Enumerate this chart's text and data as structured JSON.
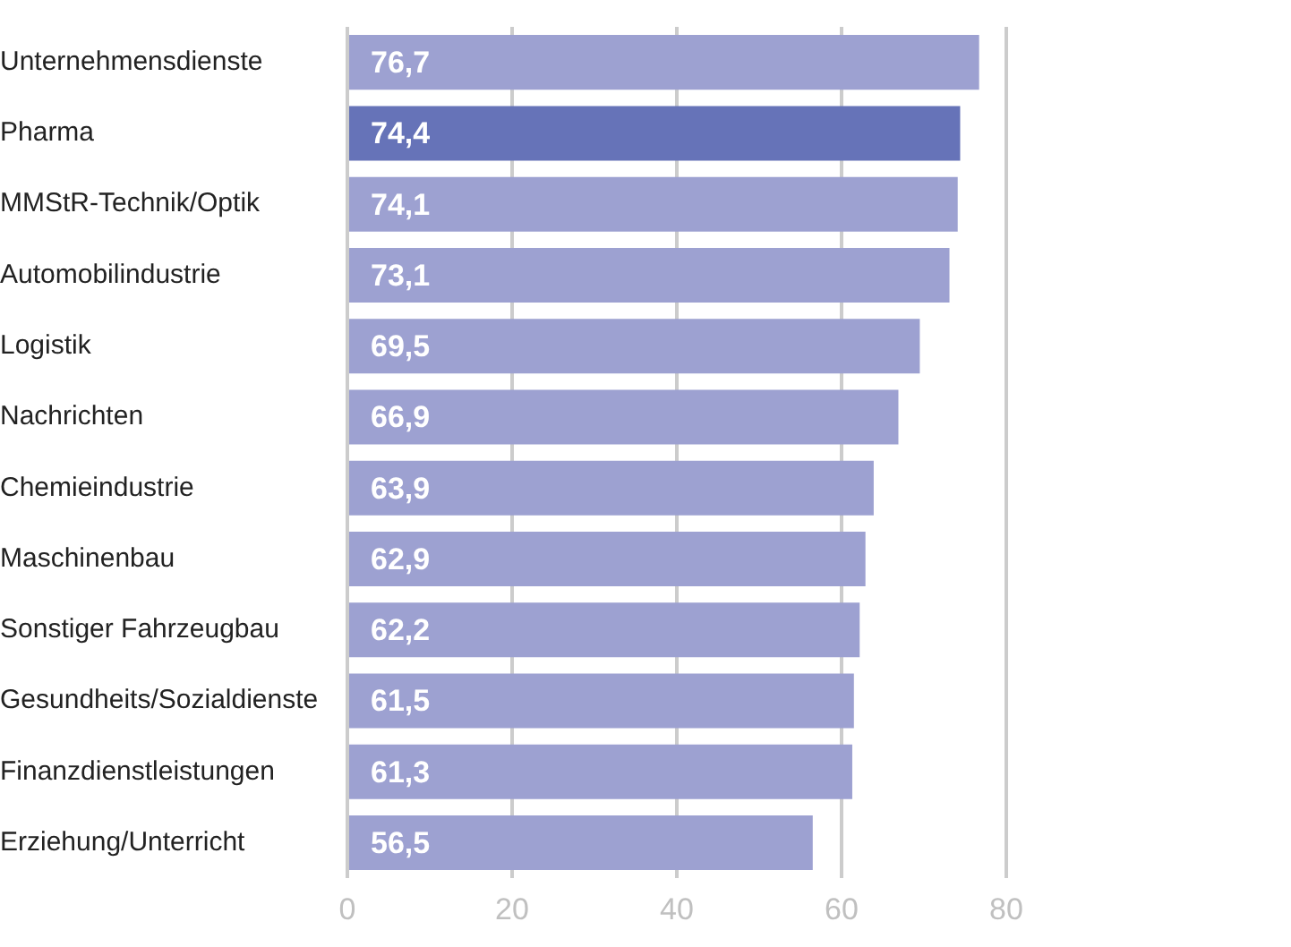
{
  "chart_data": {
    "type": "bar",
    "orientation": "horizontal",
    "categories": [
      "Unternehmensdienste",
      "Pharma",
      "MMStR-Technik/Optik",
      "Automobilindustrie",
      "Logistik",
      "Nachrichten",
      "Chemieindustrie",
      "Maschinenbau",
      "Sonstiger Fahrzeugbau",
      "Gesundheits/Sozialdienste",
      "Finanzdienstleistungen",
      "Erziehung/Unterricht"
    ],
    "values": [
      76.7,
      74.4,
      74.1,
      73.1,
      69.5,
      66.9,
      63.9,
      62.9,
      62.2,
      61.5,
      61.3,
      56.5
    ],
    "value_labels": [
      "76,7",
      "74,4",
      "74,1",
      "73,1",
      "69,5",
      "66,9",
      "63,9",
      "62,9",
      "62,2",
      "61,5",
      "61,3",
      "56,5"
    ],
    "colors": [
      "#9da1d1",
      "#6673b8",
      "#9da1d1",
      "#9da1d1",
      "#9da1d1",
      "#9da1d1",
      "#9da1d1",
      "#9da1d1",
      "#9da1d1",
      "#9da1d1",
      "#9da1d1",
      "#9da1d1"
    ],
    "xlim": [
      0,
      80
    ],
    "xticks": [
      0,
      20,
      40,
      60,
      80
    ],
    "grid": "x",
    "legend": false
  }
}
